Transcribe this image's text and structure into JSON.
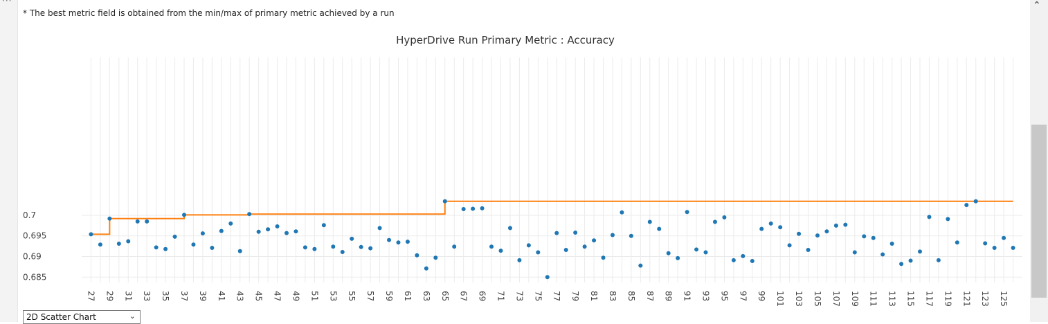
{
  "note": "* The best metric field is obtained from the min/max of primary metric achieved by a run",
  "view_selector": {
    "selected": "2D Scatter Chart"
  },
  "icons": {
    "more": "more-icon",
    "scroll_up": "chevron-up-icon",
    "dropdown": "chevron-down-icon"
  },
  "colors": {
    "points": "#1f77b4",
    "best_line": "#ff7f0e",
    "grid": "#ebebeb"
  },
  "chart_data": {
    "type": "scatter",
    "title": "HyperDrive Run Primary Metric : Accuracy",
    "xlabel": "",
    "ylabel": "",
    "xlim": [
      26,
      127
    ],
    "ylim": [
      0.6837,
      0.7383
    ],
    "yticks": [
      0.685,
      0.69,
      0.695,
      0.7
    ],
    "ytick_labels": [
      "0.685",
      "0.69",
      "0.695",
      "0.7"
    ],
    "xticks": [
      27,
      29,
      31,
      33,
      35,
      37,
      39,
      41,
      43,
      45,
      47,
      49,
      51,
      53,
      55,
      57,
      59,
      61,
      63,
      65,
      67,
      69,
      71,
      73,
      75,
      77,
      79,
      81,
      83,
      85,
      87,
      89,
      91,
      93,
      95,
      97,
      99,
      101,
      103,
      105,
      107,
      109,
      111,
      113,
      115,
      117,
      119,
      121,
      123,
      125
    ],
    "grid": true,
    "legend": "none",
    "series": [
      {
        "kind": "points",
        "x": [
          27,
          28,
          29,
          30,
          31,
          32,
          33,
          34,
          35,
          36,
          37,
          38,
          39,
          40,
          41,
          42,
          43,
          44,
          45,
          46,
          47,
          48,
          49,
          50,
          51,
          52,
          53,
          54,
          55,
          56,
          57,
          58,
          59,
          60,
          61,
          62,
          63,
          64,
          65,
          66,
          67,
          68,
          69,
          70,
          71,
          72,
          73,
          74,
          75,
          76,
          77,
          78,
          79,
          80,
          81,
          82,
          83,
          84,
          85,
          86,
          87,
          88,
          89,
          90,
          91,
          92,
          93,
          94,
          95,
          96,
          97,
          98,
          99,
          100,
          101,
          102,
          103,
          104,
          105,
          106,
          107,
          108,
          109,
          110,
          111,
          112,
          113,
          114,
          115,
          116,
          117,
          118,
          119,
          120,
          121,
          122,
          123,
          124,
          125,
          126
        ],
        "y": [
          0.6954,
          0.6929,
          0.6992,
          0.6931,
          0.6937,
          0.6985,
          0.6985,
          0.6922,
          0.6918,
          0.6948,
          0.7001,
          0.6929,
          0.6956,
          0.6921,
          0.6962,
          0.698,
          0.6913,
          0.7003,
          0.696,
          0.6966,
          0.6973,
          0.6957,
          0.6961,
          0.6922,
          0.6918,
          0.6976,
          0.6924,
          0.6911,
          0.6943,
          0.6923,
          0.692,
          0.6969,
          0.694,
          0.6934,
          0.6936,
          0.6903,
          0.6871,
          0.6897,
          0.7034,
          0.6924,
          0.7015,
          0.7016,
          0.7017,
          0.6924,
          0.6914,
          0.6969,
          0.6891,
          0.6927,
          0.691,
          0.685,
          0.6957,
          0.6916,
          0.6958,
          0.6924,
          0.6939,
          0.6897,
          0.6952,
          0.7007,
          0.695,
          0.6878,
          0.6984,
          0.6967,
          0.6908,
          0.6896,
          0.7008,
          0.6917,
          0.691,
          0.6984,
          0.6995,
          0.6891,
          0.6901,
          0.6889,
          0.6967,
          0.698,
          0.6971,
          0.6927,
          0.6955,
          0.6916,
          0.6951,
          0.6961,
          0.6975,
          0.6977,
          0.691,
          0.6949,
          0.6945,
          0.6905,
          0.6931,
          0.6882,
          0.689,
          0.6912,
          0.6996,
          0.6891,
          0.6991,
          0.6934,
          0.7025,
          0.7034,
          0.6932,
          0.6921,
          0.6945,
          0.6921
        ]
      },
      {
        "kind": "best-step",
        "x": [
          27,
          29,
          37,
          44,
          65,
          126
        ],
        "y": [
          0.6954,
          0.6992,
          0.7001,
          0.7003,
          0.7034,
          0.7034
        ]
      }
    ]
  }
}
